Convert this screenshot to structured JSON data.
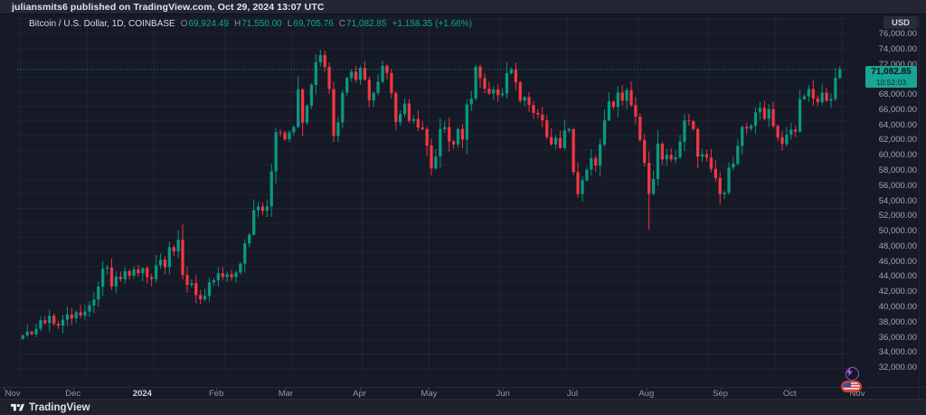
{
  "header": {
    "published_line": "juliansmits6 published on TradingView.com, Oct 29, 2024 13:07 UTC"
  },
  "legend": {
    "symbol_title": "Bitcoin / U.S. Dollar, 1D, COINBASE",
    "o_label": "O",
    "o": "69,924.49",
    "h_label": "H",
    "h": "71,550.00",
    "l_label": "L",
    "l": "69,705.76",
    "c_label": "C",
    "c": "71,082.85",
    "change": "+1,158.35 (+1.66%)"
  },
  "price_scale": {
    "currency_button": "USD",
    "labels": [
      "76,000.00",
      "74,000.00",
      "72,000.00",
      "70,000.00",
      "68,000.00",
      "66,000.00",
      "64,000.00",
      "62,000.00",
      "60,000.00",
      "58,000.00",
      "56,000.00",
      "54,000.00",
      "52,000.00",
      "50,000.00",
      "48,000.00",
      "46,000.00",
      "44,000.00",
      "42,000.00",
      "40,000.00",
      "38,000.00",
      "36,000.00",
      "34,000.00",
      "32,000.00"
    ],
    "last_price_label": "71,082.85",
    "countdown": "10:52:03"
  },
  "time_scale": {
    "months": [
      {
        "label": "Nov",
        "index": 0,
        "bold": false
      },
      {
        "label": "Dec",
        "index": 15,
        "bold": false
      },
      {
        "label": "2024",
        "index": 30,
        "bold": true
      },
      {
        "label": "Feb",
        "index": 46,
        "bold": false
      },
      {
        "label": "Mar",
        "index": 61,
        "bold": false
      },
      {
        "label": "Apr",
        "index": 77,
        "bold": false
      },
      {
        "label": "May",
        "index": 92,
        "bold": false
      },
      {
        "label": "Jun",
        "index": 108,
        "bold": false
      },
      {
        "label": "Jul",
        "index": 123,
        "bold": false
      },
      {
        "label": "Aug",
        "index": 139,
        "bold": false
      },
      {
        "label": "Sep",
        "index": 155,
        "bold": false
      },
      {
        "label": "Oct",
        "index": 170,
        "bold": false
      },
      {
        "label": "Nov",
        "index": 185,
        "bold": false
      }
    ]
  },
  "footer": {
    "brand": "TradingView"
  },
  "colors": {
    "up": "#089981",
    "down": "#f23645",
    "badge_bg": "#1aa493",
    "dotted_line": "#26a69a",
    "grid": "rgba(151,160,181,0.08)"
  },
  "chart_data": {
    "type": "candlestick",
    "title": "Bitcoin / U.S. Dollar",
    "interval": "1D",
    "exchange": "COINBASE",
    "currency": "USD",
    "last_bar": {
      "open": 69924.49,
      "high": 71550.0,
      "low": 69705.76,
      "close": 71082.85,
      "change": 1158.35,
      "change_pct": 1.66
    },
    "current_price": 71082.85,
    "y_axis": {
      "min": 32000,
      "max": 76000,
      "step": 2000
    },
    "x_axis_months": [
      "Nov",
      "Dec",
      "2024",
      "Feb",
      "Mar",
      "Apr",
      "May",
      "Jun",
      "Jul",
      "Aug",
      "Sep",
      "Oct",
      "Nov"
    ],
    "first_open": 34100,
    "closes": [
      34560,
      35050,
      34700,
      35450,
      36640,
      36250,
      37250,
      36150,
      35900,
      36700,
      37420,
      36870,
      37720,
      37280,
      37820,
      38690,
      39470,
      41250,
      43720,
      43850,
      41280,
      42640,
      42270,
      43380,
      42750,
      43620,
      43080,
      43790,
      42550,
      42280,
      44180,
      44960,
      43920,
      46680,
      46110,
      47680,
      42850,
      41480,
      41730,
      40090,
      39510,
      39970,
      41830,
      42120,
      43080,
      42580,
      42950,
      42550,
      43180,
      44390,
      47180,
      48380,
      51750,
      52250,
      51690,
      52270,
      57080,
      62460,
      62380,
      61480,
      62450,
      63180,
      68330,
      63750,
      66100,
      68960,
      72080,
      73050,
      71420,
      68390,
      61940,
      63810,
      67870,
      69890,
      70780,
      69630,
      71280,
      69680,
      66820,
      67840,
      69400,
      71580,
      70580,
      67820,
      63840,
      64940,
      66380,
      64030,
      64280,
      63110,
      62880,
      60630,
      57480,
      59120,
      62880,
      63160,
      61190,
      60790,
      62900,
      61440,
      66270,
      67080,
      71440,
      69890,
      68420,
      67760,
      68320,
      67540,
      67760,
      70560,
      71080,
      69310,
      66790,
      67280,
      66190,
      65110,
      64890,
      64090,
      61790,
      60790,
      61680,
      60310,
      62680,
      62890,
      56980,
      53960,
      55850,
      57340,
      58900,
      57890,
      60790,
      64090,
      66690,
      65930,
      67910,
      66780,
      68240,
      66190,
      64610,
      61390,
      58240,
      53990,
      56030,
      60880,
      58710,
      59350,
      58710,
      59030,
      61160,
      64090,
      63970,
      62880,
      59090,
      59440,
      58970,
      57430,
      56170,
      53950,
      54140,
      57610,
      58120,
      60590,
      63190,
      62950,
      63350,
      65180,
      65790,
      64290,
      65630,
      63330,
      61760,
      60840,
      62110,
      62820,
      62540,
      66990,
      67380,
      68390,
      67080,
      66580,
      67890,
      66780,
      67040,
      69910,
      71083
    ],
    "wick_overrides": {
      "35": {
        "high": 48970
      },
      "40": {
        "low": 38880
      },
      "67": {
        "high": 73800
      },
      "92": {
        "low": 56520
      },
      "125": {
        "low": 53480
      },
      "141": {
        "low": 49050
      },
      "157": {
        "low": 52550
      },
      "184": {
        "high": 71550,
        "low": 69700
      }
    }
  }
}
